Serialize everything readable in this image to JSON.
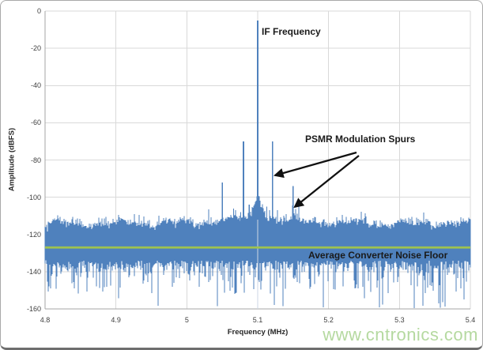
{
  "figure": {
    "watermark": {
      "text": "www.cntronics.com",
      "color": "#b5d9a0"
    },
    "border_color": "#a9a9a9",
    "background": "#ffffff"
  },
  "chart_data": {
    "type": "line",
    "title": "",
    "xlabel": "Frequency (MHz)",
    "ylabel": "Amplitude (dBFS)",
    "xlim": [
      4.8,
      5.4
    ],
    "ylim": [
      -160,
      0
    ],
    "grid": true,
    "x_ticks": {
      "values": [
        4.8,
        4.9,
        5.0,
        5.1,
        5.2,
        5.3,
        5.4
      ],
      "labels": [
        "4.8",
        "4.9",
        "5",
        "5.1",
        "5.2",
        "5.3",
        "5.4"
      ]
    },
    "y_ticks": {
      "values": [
        0,
        -20,
        -40,
        -60,
        -80,
        -100,
        -120,
        -140,
        -160
      ],
      "labels": [
        "0",
        "-20",
        "-40",
        "-60",
        "-80",
        "-100",
        "-120",
        "-140",
        "-160"
      ]
    },
    "colors": {
      "series": "#4F81BD",
      "noise_floor_line": "#9EC350",
      "grid": "#D9D9D9",
      "axis": "#A6A6A6",
      "annotation_text": "#1A1A1A",
      "arrow": "#111111"
    },
    "main_tone": {
      "label": "IF Frequency",
      "freq_mhz": 5.1,
      "amplitude_dbfs": -5
    },
    "carrier_skirt": {
      "center_mhz": 5.1,
      "half_width_mhz": 0.017,
      "apex_dbfs": -100
    },
    "modulation_spurs": {
      "label": "PSMR Modulation Spurs",
      "points": [
        {
          "freq_mhz": 5.05,
          "amplitude_dbfs": -92,
          "arrow": false
        },
        {
          "freq_mhz": 5.08,
          "amplitude_dbfs": -70,
          "arrow": false
        },
        {
          "freq_mhz": 5.121,
          "amplitude_dbfs": -70,
          "arrow": true
        },
        {
          "freq_mhz": 5.15,
          "amplitude_dbfs": -94,
          "arrow": true
        }
      ]
    },
    "minor_bumps": [
      {
        "freq_mhz": 5.066,
        "amplitude_dbfs": -106
      },
      {
        "freq_mhz": 5.076,
        "amplitude_dbfs": -108
      },
      {
        "freq_mhz": 5.088,
        "amplitude_dbfs": -104
      },
      {
        "freq_mhz": 5.113,
        "amplitude_dbfs": -105
      },
      {
        "freq_mhz": 5.128,
        "amplitude_dbfs": -107
      },
      {
        "freq_mhz": 5.14,
        "amplitude_dbfs": -109
      }
    ],
    "noise_floor": {
      "label": "Average Converter Noise Floor",
      "average_dbfs": -127,
      "typical_top_envelope_dbfs": -114,
      "dense_bottom_dbfs": -137,
      "deepest_spike_dbfs": -160
    }
  }
}
